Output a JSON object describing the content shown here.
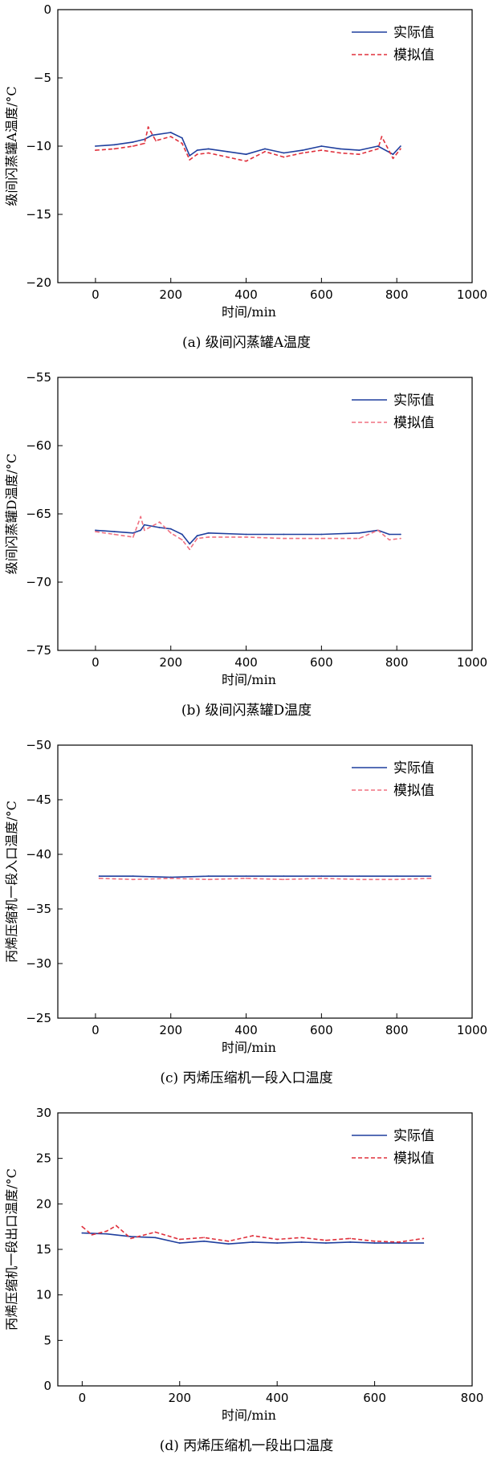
{
  "chart_data": [
    {
      "type": "line",
      "caption": "(a) 级间闪蒸罐A温度",
      "xlabel": "时间/min",
      "ylabel": "级间闪蒸罐A温度/°C",
      "xlim": [
        -100,
        1000
      ],
      "ylim": [
        -20,
        0
      ],
      "xticks": [
        0,
        200,
        400,
        600,
        800,
        1000
      ],
      "yticks": [
        0,
        -5,
        -10,
        -15,
        -20
      ],
      "legend_position": "top-right",
      "series": [
        {
          "name": "实际值",
          "color": "#1f3f9e",
          "style": "solid",
          "x": [
            0,
            50,
            100,
            130,
            150,
            200,
            230,
            250,
            270,
            300,
            350,
            400,
            450,
            500,
            550,
            600,
            650,
            700,
            750,
            790,
            810
          ],
          "y": [
            -10,
            -9.9,
            -9.7,
            -9.5,
            -9.2,
            -9.0,
            -9.4,
            -10.7,
            -10.3,
            -10.2,
            -10.4,
            -10.6,
            -10.2,
            -10.5,
            -10.3,
            -10.0,
            -10.2,
            -10.3,
            -10.0,
            -10.6,
            -10.0
          ]
        },
        {
          "name": "模拟值",
          "color": "#e0303c",
          "style": "dashed",
          "x": [
            0,
            50,
            100,
            130,
            140,
            160,
            200,
            230,
            250,
            270,
            300,
            350,
            400,
            450,
            500,
            550,
            600,
            650,
            700,
            750,
            760,
            790,
            810
          ],
          "y": [
            -10.3,
            -10.2,
            -10.0,
            -9.8,
            -8.6,
            -9.6,
            -9.3,
            -9.8,
            -11.0,
            -10.6,
            -10.5,
            -10.8,
            -11.1,
            -10.4,
            -10.8,
            -10.5,
            -10.3,
            -10.5,
            -10.6,
            -10.2,
            -9.3,
            -10.9,
            -10.2
          ]
        }
      ]
    },
    {
      "type": "line",
      "caption": "(b) 级间闪蒸罐D温度",
      "xlabel": "时间/min",
      "ylabel": "级间闪蒸罐D温度/°C",
      "xlim": [
        -100,
        1000
      ],
      "ylim": [
        -75,
        -55
      ],
      "xticks": [
        0,
        200,
        400,
        600,
        800,
        1000
      ],
      "yticks": [
        -55,
        -60,
        -65,
        -70,
        -75
      ],
      "legend_position": "top-right",
      "series": [
        {
          "name": "实际值",
          "color": "#1f3f9e",
          "style": "solid",
          "x": [
            0,
            50,
            100,
            120,
            130,
            170,
            200,
            230,
            250,
            270,
            300,
            400,
            500,
            600,
            700,
            750,
            780,
            810
          ],
          "y": [
            -66.2,
            -66.3,
            -66.4,
            -66.2,
            -65.8,
            -66.0,
            -66.1,
            -66.5,
            -67.2,
            -66.6,
            -66.4,
            -66.5,
            -66.5,
            -66.5,
            -66.4,
            -66.2,
            -66.5,
            -66.5
          ]
        },
        {
          "name": "模拟值",
          "color": "#f07080",
          "style": "dashed",
          "x": [
            0,
            50,
            100,
            120,
            130,
            170,
            200,
            230,
            250,
            270,
            300,
            400,
            500,
            600,
            700,
            750,
            780,
            810
          ],
          "y": [
            -66.3,
            -66.5,
            -66.7,
            -65.2,
            -66.2,
            -65.6,
            -66.4,
            -66.9,
            -67.6,
            -66.8,
            -66.7,
            -66.7,
            -66.8,
            -66.8,
            -66.8,
            -66.2,
            -66.9,
            -66.8
          ]
        }
      ]
    },
    {
      "type": "line",
      "caption": "(c) 丙烯压缩机一段入口温度",
      "xlabel": "时间/min",
      "ylabel": "丙烯压缩机一段入口温度/°C",
      "xlim": [
        -100,
        1000
      ],
      "ylim": [
        -50,
        -25
      ],
      "y_inverted": true,
      "xticks": [
        0,
        200,
        400,
        600,
        800,
        1000
      ],
      "yticks": [
        -50,
        -45,
        -40,
        -35,
        -30,
        -25
      ],
      "legend_position": "top-right",
      "series": [
        {
          "name": "实际值",
          "color": "#1f3f9e",
          "style": "solid",
          "x": [
            10,
            100,
            200,
            300,
            400,
            500,
            600,
            700,
            800,
            890
          ],
          "y": [
            -38.0,
            -38.0,
            -37.9,
            -38.0,
            -38.0,
            -38.0,
            -38.0,
            -38.0,
            -38.0,
            -38.0
          ]
        },
        {
          "name": "模拟值",
          "color": "#f07080",
          "style": "dashed",
          "x": [
            10,
            100,
            200,
            300,
            400,
            500,
            600,
            700,
            800,
            890
          ],
          "y": [
            -37.8,
            -37.7,
            -37.8,
            -37.7,
            -37.8,
            -37.7,
            -37.8,
            -37.7,
            -37.7,
            -37.8
          ]
        }
      ]
    },
    {
      "type": "line",
      "caption": "(d) 丙烯压缩机一段出口温度",
      "xlabel": "时间/min",
      "ylabel": "丙烯压缩机一段出口温度/°C",
      "xlim": [
        -50,
        800
      ],
      "ylim": [
        0,
        30
      ],
      "xticks": [
        0,
        200,
        400,
        600,
        800
      ],
      "yticks": [
        0,
        5,
        10,
        15,
        20,
        25,
        30
      ],
      "legend_position": "top-right",
      "series": [
        {
          "name": "实际值",
          "color": "#1f3f9e",
          "style": "solid",
          "x": [
            0,
            50,
            100,
            150,
            200,
            250,
            300,
            350,
            400,
            450,
            500,
            550,
            600,
            650,
            700
          ],
          "y": [
            16.8,
            16.7,
            16.4,
            16.3,
            15.7,
            15.9,
            15.6,
            15.8,
            15.7,
            15.8,
            15.7,
            15.8,
            15.7,
            15.7,
            15.7
          ]
        },
        {
          "name": "模拟值",
          "color": "#e0303c",
          "style": "dashed",
          "x": [
            0,
            20,
            50,
            70,
            100,
            150,
            200,
            250,
            300,
            350,
            400,
            450,
            500,
            550,
            600,
            650,
            700
          ],
          "y": [
            17.5,
            16.6,
            17.0,
            17.6,
            16.2,
            16.9,
            16.1,
            16.3,
            15.9,
            16.5,
            16.1,
            16.3,
            16.0,
            16.2,
            15.9,
            15.8,
            16.2
          ]
        }
      ]
    }
  ]
}
